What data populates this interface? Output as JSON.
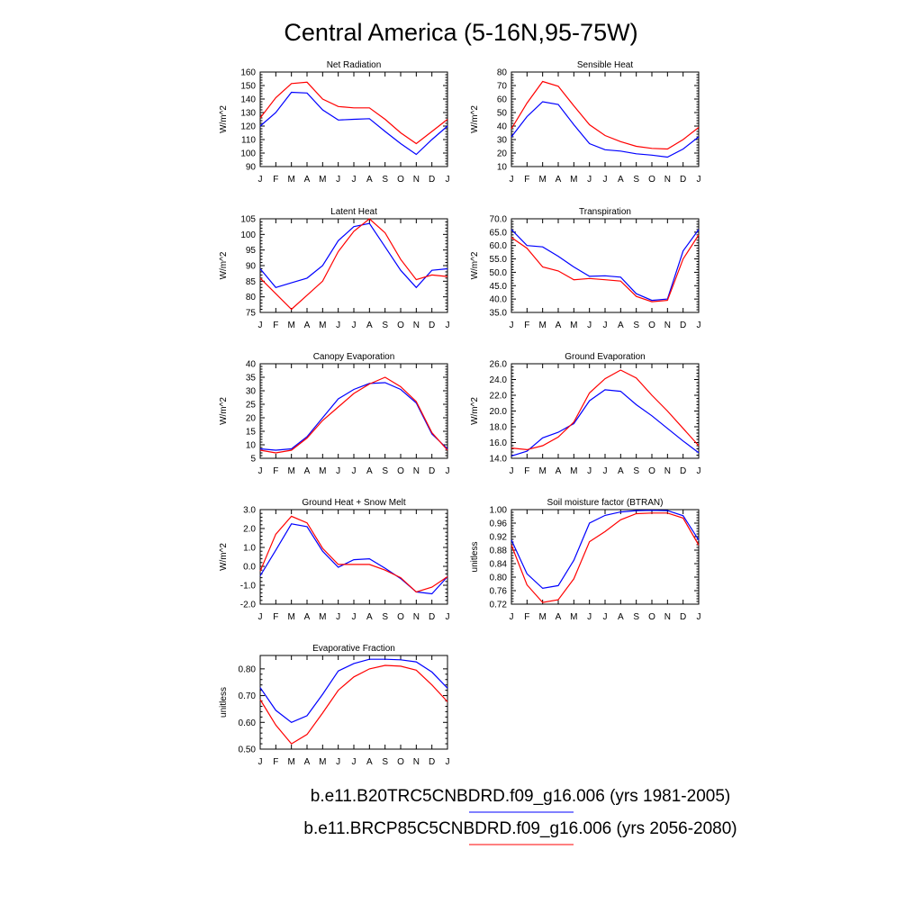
{
  "figure": {
    "title": "Central America (5-16N,95-75W)"
  },
  "legend": [
    {
      "label": "b.e11.B20TRC5CNBDRD.f09_g16.006 (yrs 1981-2005)",
      "color": "#0000ff"
    },
    {
      "label": "b.e11.BRCP85C5CNBDRD.f09_g16.006 (yrs 2056-2080)",
      "color": "#ff0000"
    }
  ],
  "chart_data": [
    {
      "type": "line",
      "title": "Net Radiation",
      "ylabel": "W/m^2",
      "categories": [
        "J",
        "F",
        "M",
        "A",
        "M",
        "J",
        "J",
        "A",
        "S",
        "O",
        "N",
        "D",
        "J"
      ],
      "ylim": [
        90,
        160
      ],
      "yticks": [
        90,
        100,
        110,
        120,
        130,
        140,
        150,
        160
      ],
      "ytick_labels": [
        "90",
        "100",
        "110",
        "120",
        "130",
        "140",
        "150",
        "160"
      ],
      "series": [
        {
          "color": "#0000ff",
          "values": [
            120,
            130,
            145,
            144.5,
            132,
            124.5,
            125,
            125.5,
            116,
            107,
            99,
            110,
            120
          ]
        },
        {
          "color": "#ff0000",
          "values": [
            126,
            141,
            151.5,
            152.5,
            140,
            134.5,
            133.5,
            133.5,
            125,
            115,
            107,
            116,
            125
          ]
        }
      ]
    },
    {
      "type": "line",
      "title": "Sensible Heat",
      "ylabel": "W/m^2",
      "categories": [
        "J",
        "F",
        "M",
        "A",
        "M",
        "J",
        "J",
        "A",
        "S",
        "O",
        "N",
        "D",
        "J"
      ],
      "ylim": [
        10,
        80
      ],
      "yticks": [
        10,
        20,
        30,
        40,
        50,
        60,
        70,
        80
      ],
      "ytick_labels": [
        "10",
        "20",
        "30",
        "40",
        "50",
        "60",
        "70",
        "80"
      ],
      "series": [
        {
          "color": "#0000ff",
          "values": [
            32,
            47,
            58,
            56,
            41,
            27,
            22.5,
            21.5,
            19.5,
            18.5,
            17,
            23,
            32
          ]
        },
        {
          "color": "#ff0000",
          "values": [
            38,
            57,
            73,
            69.5,
            55,
            41,
            33,
            28.5,
            25,
            23.5,
            23,
            30,
            39
          ]
        }
      ]
    },
    {
      "type": "line",
      "title": "Latent Heat",
      "ylabel": "W/m^2",
      "categories": [
        "J",
        "F",
        "M",
        "A",
        "M",
        "J",
        "J",
        "A",
        "S",
        "O",
        "N",
        "D",
        "J"
      ],
      "ylim": [
        75,
        105
      ],
      "yticks": [
        75,
        80,
        85,
        90,
        95,
        100,
        105
      ],
      "ytick_labels": [
        "75",
        "80",
        "85",
        "90",
        "95",
        "100",
        "105"
      ],
      "series": [
        {
          "color": "#0000ff",
          "values": [
            89,
            83,
            84.5,
            86,
            90,
            98,
            102.5,
            103.5,
            96,
            88.5,
            83,
            88.5,
            89
          ]
        },
        {
          "color": "#ff0000",
          "values": [
            86,
            81,
            76,
            80.5,
            85,
            94.5,
            101,
            105,
            100.5,
            92,
            85.5,
            87,
            86.5
          ]
        }
      ]
    },
    {
      "type": "line",
      "title": "Transpiration",
      "ylabel": "W/m^2",
      "categories": [
        "J",
        "F",
        "M",
        "A",
        "M",
        "J",
        "J",
        "A",
        "S",
        "O",
        "N",
        "D",
        "J"
      ],
      "ylim": [
        35,
        70
      ],
      "yticks": [
        35,
        40,
        45,
        50,
        55,
        60,
        65,
        70
      ],
      "ytick_labels": [
        "35.0",
        "40.0",
        "45.0",
        "50.0",
        "55.0",
        "60.0",
        "65.0",
        "70.0"
      ],
      "series": [
        {
          "color": "#0000ff",
          "values": [
            66,
            60,
            59.5,
            56,
            52,
            48.5,
            48.7,
            48.2,
            42,
            39.5,
            40,
            58,
            66
          ]
        },
        {
          "color": "#ff0000",
          "values": [
            63,
            59,
            52,
            50.5,
            47.2,
            47.7,
            47.2,
            46.7,
            41,
            39,
            39.5,
            55,
            64
          ]
        }
      ]
    },
    {
      "type": "line",
      "title": "Canopy Evaporation",
      "ylabel": "W/m^2",
      "categories": [
        "J",
        "F",
        "M",
        "A",
        "M",
        "J",
        "J",
        "A",
        "S",
        "O",
        "N",
        "D",
        "J"
      ],
      "ylim": [
        5,
        40
      ],
      "yticks": [
        5,
        10,
        15,
        20,
        25,
        30,
        35,
        40
      ],
      "ytick_labels": [
        "5",
        "10",
        "15",
        "20",
        "25",
        "30",
        "35",
        "40"
      ],
      "series": [
        {
          "color": "#0000ff",
          "values": [
            8.5,
            8,
            8.5,
            13,
            20,
            27,
            30.5,
            32.7,
            33,
            30.5,
            25.5,
            14,
            8.5
          ]
        },
        {
          "color": "#ff0000",
          "values": [
            8,
            7,
            8,
            12.5,
            19,
            24,
            29,
            32.5,
            35,
            31.5,
            26,
            14.5,
            8
          ]
        }
      ]
    },
    {
      "type": "line",
      "title": "Ground Evaporation",
      "ylabel": "W/m^2",
      "categories": [
        "J",
        "F",
        "M",
        "A",
        "M",
        "J",
        "J",
        "A",
        "S",
        "O",
        "N",
        "D",
        "J"
      ],
      "ylim": [
        14,
        26
      ],
      "yticks": [
        14,
        16,
        18,
        20,
        22,
        24,
        26
      ],
      "ytick_labels": [
        "14.0",
        "16.0",
        "18.0",
        "20.0",
        "22.0",
        "24.0",
        "26.0"
      ],
      "series": [
        {
          "color": "#0000ff",
          "values": [
            14.3,
            14.9,
            16.6,
            17.3,
            18.4,
            21.3,
            22.7,
            22.5,
            20.8,
            19.4,
            17.8,
            16.2,
            14.7
          ]
        },
        {
          "color": "#ff0000",
          "values": [
            15.3,
            15.1,
            15.6,
            16.7,
            18.6,
            22.3,
            24.1,
            25.2,
            24.2,
            22,
            20,
            17.8,
            15.6
          ]
        }
      ]
    },
    {
      "type": "line",
      "title": "Ground Heat + Snow Melt",
      "ylabel": "W/m^2",
      "categories": [
        "J",
        "F",
        "M",
        "A",
        "M",
        "J",
        "J",
        "A",
        "S",
        "O",
        "N",
        "D",
        "J"
      ],
      "ylim": [
        -2,
        3
      ],
      "yticks": [
        -2,
        -1,
        0,
        1,
        2,
        3
      ],
      "ytick_labels": [
        "-2.0",
        "-1.0",
        "0.0",
        "1.0",
        "2.0",
        "3.0"
      ],
      "series": [
        {
          "color": "#0000ff",
          "values": [
            -0.5,
            0.85,
            2.25,
            2.1,
            0.8,
            -0.05,
            0.35,
            0.4,
            -0.1,
            -0.65,
            -1.35,
            -1.45,
            -0.55
          ]
        },
        {
          "color": "#ff0000",
          "values": [
            -0.25,
            1.7,
            2.65,
            2.3,
            0.95,
            0.1,
            0.1,
            0.1,
            -0.2,
            -0.6,
            -1.35,
            -1.1,
            -0.55
          ]
        }
      ]
    },
    {
      "type": "line",
      "title": "Soil moisture factor (BTRAN)",
      "ylabel": "unitless",
      "categories": [
        "J",
        "F",
        "M",
        "A",
        "M",
        "J",
        "J",
        "A",
        "S",
        "O",
        "N",
        "D",
        "J"
      ],
      "ylim": [
        0.72,
        1.0
      ],
      "yticks": [
        0.72,
        0.76,
        0.8,
        0.84,
        0.88,
        0.92,
        0.96,
        1.0
      ],
      "ytick_labels": [
        "0.72",
        "0.76",
        "0.80",
        "0.84",
        "0.88",
        "0.92",
        "0.96",
        "1.00"
      ],
      "series": [
        {
          "color": "#0000ff",
          "values": [
            0.91,
            0.81,
            0.767,
            0.775,
            0.85,
            0.96,
            0.983,
            0.993,
            0.997,
            0.998,
            0.997,
            0.982,
            0.91
          ]
        },
        {
          "color": "#ff0000",
          "values": [
            0.895,
            0.777,
            0.725,
            0.733,
            0.795,
            0.905,
            0.935,
            0.97,
            0.988,
            0.99,
            0.99,
            0.975,
            0.895
          ]
        }
      ]
    },
    {
      "type": "line",
      "title": "Evaporative Fraction",
      "ylabel": "unitless",
      "categories": [
        "J",
        "F",
        "M",
        "A",
        "M",
        "J",
        "J",
        "A",
        "S",
        "O",
        "N",
        "D",
        "J"
      ],
      "ylim": [
        0.5,
        0.85
      ],
      "yticks": [
        0.5,
        0.6,
        0.7,
        0.8
      ],
      "ytick_labels": [
        "0.50",
        "0.60",
        "0.70",
        "0.80"
      ],
      "series": [
        {
          "color": "#0000ff",
          "values": [
            0.73,
            0.645,
            0.6,
            0.625,
            0.705,
            0.792,
            0.82,
            0.836,
            0.836,
            0.834,
            0.826,
            0.788,
            0.728
          ]
        },
        {
          "color": "#ff0000",
          "values": [
            0.685,
            0.59,
            0.52,
            0.555,
            0.635,
            0.72,
            0.77,
            0.8,
            0.813,
            0.81,
            0.795,
            0.74,
            0.677
          ]
        }
      ]
    }
  ]
}
